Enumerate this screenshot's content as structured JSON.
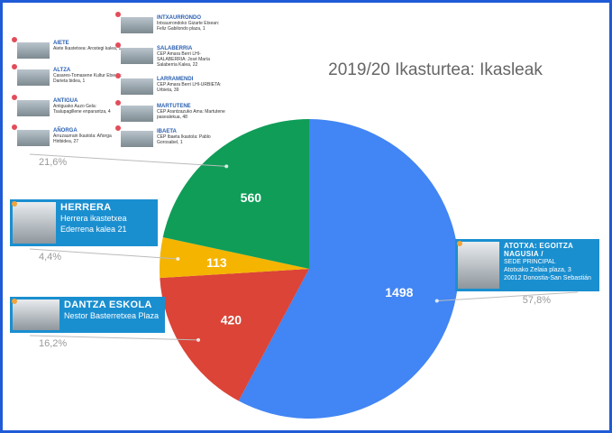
{
  "chart_data": {
    "type": "pie",
    "title": "2019/20 Ikasturtea: Ikasleak",
    "values": [
      1498,
      420,
      113,
      560
    ],
    "colors": [
      "#4285f4",
      "#db4437",
      "#f4b400",
      "#0f9d58"
    ],
    "percent_labels": [
      "57,8%",
      "16,2%",
      "4,4%",
      "21,6%"
    ]
  },
  "callouts": [
    {
      "title": "ATOTXA: EGOITZA NAGUSIA /",
      "lines": [
        "SEDE PRINCIPAL",
        "Atotxako Zelaia plaza, 3",
        "20012 Donostia-San Sebastián"
      ]
    },
    {
      "title": "DANTZA ESKOLA",
      "lines": [
        "Nestor Basterretxea Plaza"
      ]
    },
    {
      "title": "HERRERA",
      "lines": [
        "Herrera ikastetxea",
        "Ederrena kalea 21"
      ]
    }
  ],
  "locations": [
    {
      "title": "AIETE",
      "text": "Aiete Ikastetxea: Arostegi kalea, 1"
    },
    {
      "title": "ALTZA",
      "text": "Casares-Tomasene Kultur Etxean: Darieta bidea, 1"
    },
    {
      "title": "ANTIGUA",
      "text": "Antiguako Auzo Gela: Tsalupagillene enparantza, 4"
    },
    {
      "title": "AÑORGA",
      "text": "Arruzaurrain Ikastola: Añorga Hiribidea, 27"
    },
    {
      "title": "INTXAURRONDO",
      "text": "Intxaurrondoko Gizarte Etxean: Feliz Gabilondo plaza, 1"
    },
    {
      "title": "SALABERRIA",
      "text": "CEP Amara Berri LHI-SALABERRIA: José María Salaberria Kalea, 22"
    },
    {
      "title": "LARRAMENDI",
      "text": "CEP Amara Berri LHI-URBIETA: Urbieta, 39"
    },
    {
      "title": "MARTUTENE",
      "text": "CEP Arantzazuko Ama: Martutene pasealekua, 48"
    },
    {
      "title": "IBAETA",
      "text": "CEP Ibaeta Ikastola: Pablo Gorosabel, 1"
    }
  ]
}
